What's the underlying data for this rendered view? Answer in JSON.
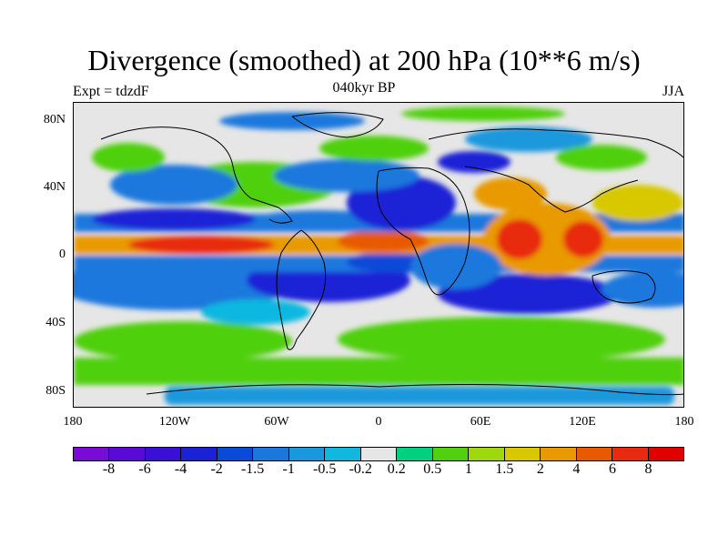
{
  "title": "Divergence (smoothed) at 200 hPa (10**6 m/s)",
  "subtitle_left": "Expt = tdzdF",
  "subtitle_center": "040kyr BP",
  "subtitle_right": "JJA",
  "lat_labels": [
    "80N",
    "40N",
    "0",
    "40S",
    "80S"
  ],
  "lon_labels": [
    "180",
    "120W",
    "60W",
    "0",
    "60E",
    "120E",
    "180"
  ],
  "colorbar": {
    "labels": [
      "-8",
      "-6",
      "-4",
      "-2",
      "-1.5",
      "-1",
      "-0.5",
      "-0.2",
      "0.2",
      "0.5",
      "1",
      "1.5",
      "2",
      "4",
      "6",
      "8"
    ],
    "colors": [
      "#7a0bd6",
      "#5a0ad8",
      "#3b10d6",
      "#1a22d6",
      "#0a4ad8",
      "#1a78dd",
      "#1a98dd",
      "#10b8e0",
      "#e6e6e6",
      "#00d080",
      "#50d010",
      "#a0d810",
      "#d8c800",
      "#e89a00",
      "#e85a00",
      "#e82a10",
      "#e00000"
    ]
  }
}
